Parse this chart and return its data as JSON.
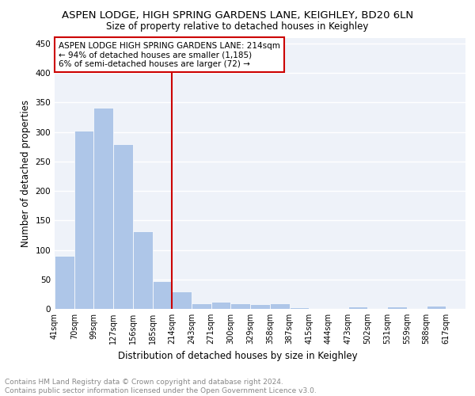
{
  "title": "ASPEN LODGE, HIGH SPRING GARDENS LANE, KEIGHLEY, BD20 6LN",
  "subtitle": "Size of property relative to detached houses in Keighley",
  "xlabel": "Distribution of detached houses by size in Keighley",
  "ylabel": "Number of detached properties",
  "bar_labels": [
    "41sqm",
    "70sqm",
    "99sqm",
    "127sqm",
    "156sqm",
    "185sqm",
    "214sqm",
    "243sqm",
    "271sqm",
    "300sqm",
    "329sqm",
    "358sqm",
    "387sqm",
    "415sqm",
    "444sqm",
    "473sqm",
    "502sqm",
    "531sqm",
    "559sqm",
    "588sqm",
    "617sqm"
  ],
  "bar_values": [
    90,
    302,
    341,
    279,
    131,
    47,
    30,
    9,
    12,
    10,
    8,
    9,
    3,
    0,
    0,
    4,
    0,
    4,
    0,
    5
  ],
  "vline_x_index": 6,
  "vline_color": "#cc0000",
  "bar_color": "#aec6e8",
  "annotation_line1": "ASPEN LODGE HIGH SPRING GARDENS LANE: 214sqm",
  "annotation_line2": "← 94% of detached houses are smaller (1,185)",
  "annotation_line3": "6% of semi-detached houses are larger (72) →",
  "annotation_box_edgecolor": "#cc0000",
  "ylim": [
    0,
    460
  ],
  "yticks": [
    0,
    50,
    100,
    150,
    200,
    250,
    300,
    350,
    400,
    450
  ],
  "footer_text": "Contains HM Land Registry data © Crown copyright and database right 2024.\nContains public sector information licensed under the Open Government Licence v3.0.",
  "plot_bg_color": "#eef2f9",
  "title_fontsize": 9.5,
  "subtitle_fontsize": 8.5,
  "xlabel_fontsize": 8.5,
  "ylabel_fontsize": 8.5,
  "footer_fontsize": 6.5,
  "annotation_fontsize": 7.5,
  "tick_fontsize": 7
}
